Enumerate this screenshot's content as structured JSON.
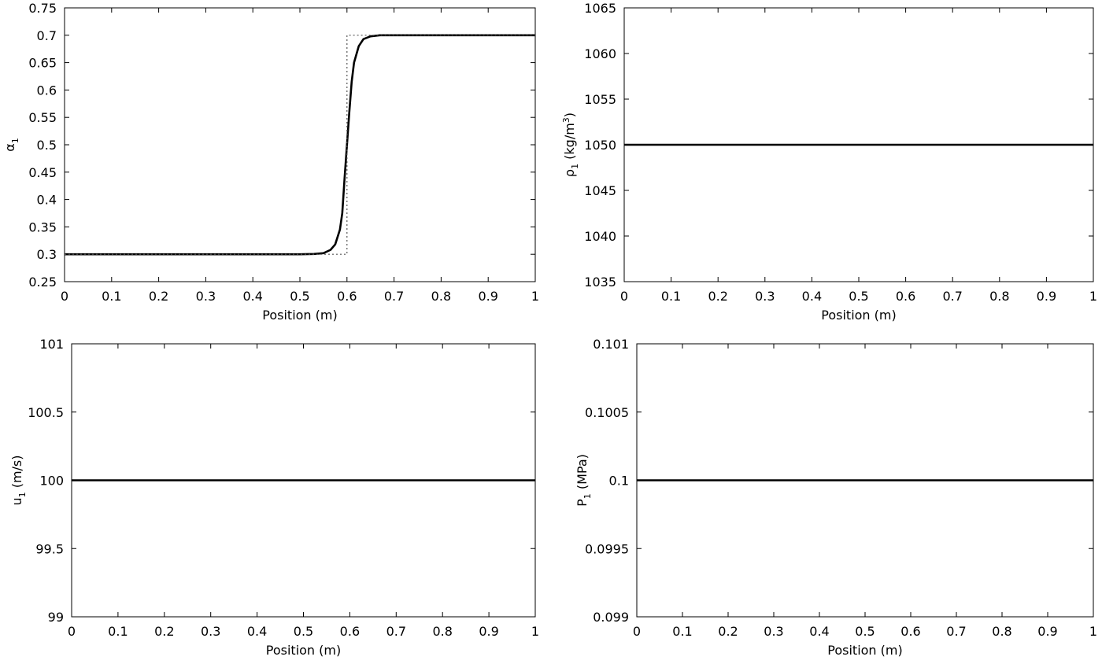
{
  "chart_data": [
    {
      "type": "line",
      "xlabel": "Position (m)",
      "ylabel": {
        "base": "α",
        "sub": "1",
        "rest": ""
      },
      "xlim": [
        0,
        1
      ],
      "ylim": [
        0.25,
        0.75
      ],
      "xticks": [
        0,
        0.1,
        0.2,
        0.3,
        0.4,
        0.5,
        0.6,
        0.7,
        0.8,
        0.9,
        1
      ],
      "xtick_labels": [
        "0",
        "0.1",
        "0.2",
        "0.3",
        "0.4",
        "0.5",
        "0.6",
        "0.7",
        "0.8",
        "0.9",
        "1"
      ],
      "yticks": [
        0.25,
        0.3,
        0.35,
        0.4,
        0.45,
        0.5,
        0.55,
        0.6,
        0.65,
        0.7,
        0.75
      ],
      "ytick_labels": [
        "0.25",
        "0.3",
        "0.35",
        "0.4",
        "0.45",
        "0.5",
        "0.55",
        "0.6",
        "0.65",
        "0.7",
        "0.75"
      ],
      "grid": false,
      "series": [
        {
          "style": "solid",
          "color": "#000000",
          "x": [
            0,
            0.5,
            0.53,
            0.55,
            0.565,
            0.575,
            0.585,
            0.59,
            0.595,
            0.6,
            0.605,
            0.61,
            0.615,
            0.625,
            0.635,
            0.65,
            0.67,
            0.7,
            1
          ],
          "y": [
            0.3,
            0.3,
            0.3005,
            0.302,
            0.308,
            0.318,
            0.345,
            0.375,
            0.44,
            0.5,
            0.56,
            0.615,
            0.65,
            0.68,
            0.693,
            0.698,
            0.7,
            0.7,
            0.7
          ]
        },
        {
          "style": "dotted",
          "color": "#555555",
          "x": [
            0,
            0.6,
            0.6,
            1
          ],
          "y": [
            0.3,
            0.3,
            0.7,
            0.7
          ]
        }
      ]
    },
    {
      "type": "line",
      "xlabel": "Position (m)",
      "ylabel": {
        "base": "ρ",
        "sub": "1",
        "rest": " (kg/m",
        "sup": "3",
        "end": ")"
      },
      "xlim": [
        0,
        1
      ],
      "ylim": [
        1035,
        1065
      ],
      "xticks": [
        0,
        0.1,
        0.2,
        0.3,
        0.4,
        0.5,
        0.6,
        0.7,
        0.8,
        0.9,
        1
      ],
      "xtick_labels": [
        "0",
        "0.1",
        "0.2",
        "0.3",
        "0.4",
        "0.5",
        "0.6",
        "0.7",
        "0.8",
        "0.9",
        "1"
      ],
      "yticks": [
        1035,
        1040,
        1045,
        1050,
        1055,
        1060,
        1065
      ],
      "ytick_labels": [
        "1035",
        "1040",
        "1045",
        "1050",
        "1055",
        "1060",
        "1065"
      ],
      "grid": false,
      "series": [
        {
          "style": "solid",
          "color": "#000000",
          "x": [
            0,
            1
          ],
          "y": [
            1050,
            1050
          ]
        }
      ]
    },
    {
      "type": "line",
      "xlabel": "Position (m)",
      "ylabel": {
        "base": "u",
        "sub": "1",
        "rest": " (m/s)"
      },
      "xlim": [
        0,
        1
      ],
      "ylim": [
        99,
        101
      ],
      "xticks": [
        0,
        0.1,
        0.2,
        0.3,
        0.4,
        0.5,
        0.6,
        0.7,
        0.8,
        0.9,
        1
      ],
      "xtick_labels": [
        "0",
        "0.1",
        "0.2",
        "0.3",
        "0.4",
        "0.5",
        "0.6",
        "0.7",
        "0.8",
        "0.9",
        "1"
      ],
      "yticks": [
        99,
        99.5,
        100,
        100.5,
        101
      ],
      "ytick_labels": [
        "99",
        "99.5",
        "100",
        "100.5",
        "101"
      ],
      "grid": false,
      "series": [
        {
          "style": "solid",
          "color": "#000000",
          "x": [
            0,
            1
          ],
          "y": [
            100,
            100
          ]
        }
      ]
    },
    {
      "type": "line",
      "xlabel": "Position (m)",
      "ylabel": {
        "base": "P",
        "sub": "1",
        "rest": " (MPa)"
      },
      "xlim": [
        0,
        1
      ],
      "ylim": [
        0.099,
        0.101
      ],
      "xticks": [
        0,
        0.1,
        0.2,
        0.3,
        0.4,
        0.5,
        0.6,
        0.7,
        0.8,
        0.9,
        1
      ],
      "xtick_labels": [
        "0",
        "0.1",
        "0.2",
        "0.3",
        "0.4",
        "0.5",
        "0.6",
        "0.7",
        "0.8",
        "0.9",
        "1"
      ],
      "yticks": [
        0.099,
        0.0995,
        0.1,
        0.1005,
        0.101
      ],
      "ytick_labels": [
        "0.099",
        "0.0995",
        "0.1",
        "0.1005",
        "0.101"
      ],
      "grid": false,
      "series": [
        {
          "style": "solid",
          "color": "#000000",
          "x": [
            0,
            1
          ],
          "y": [
            0.1,
            0.1
          ]
        }
      ]
    }
  ]
}
